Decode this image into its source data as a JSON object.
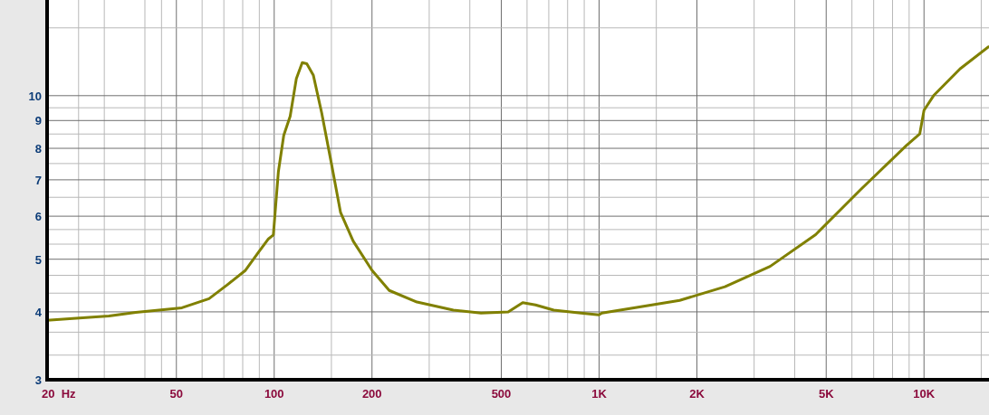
{
  "chart_data": {
    "type": "line",
    "log": "xy",
    "grid": true,
    "line_style": "solid",
    "xlim": [
      20,
      15850
    ],
    "ylim": [
      3,
      15
    ],
    "xticks": [
      {
        "value": 20,
        "label": "20  Hz"
      },
      {
        "value": 25,
        "label": null
      },
      {
        "value": 30,
        "label": null
      },
      {
        "value": 40,
        "label": null
      },
      {
        "value": 45,
        "label": null
      },
      50,
      {
        "value": 60,
        "label": null
      },
      {
        "value": 70,
        "label": null
      },
      {
        "value": 80,
        "label": null
      },
      {
        "value": 90,
        "label": null
      },
      100,
      {
        "value": 150,
        "label": null
      },
      200,
      {
        "value": 300,
        "label": null
      },
      {
        "value": 400,
        "label": null
      },
      500,
      {
        "value": 600,
        "label": null
      },
      {
        "value": 700,
        "label": null
      },
      {
        "value": 800,
        "label": null
      },
      {
        "value": 900,
        "label": null
      },
      {
        "value": 1000,
        "label": "1K"
      },
      {
        "value": 1500,
        "label": null
      },
      {
        "value": 2000,
        "label": "2K"
      },
      {
        "value": 3000,
        "label": null
      },
      {
        "value": 4000,
        "label": null
      },
      {
        "value": 5000,
        "label": "5K"
      },
      {
        "value": 6000,
        "label": null
      },
      {
        "value": 7000,
        "label": null
      },
      {
        "value": 8000,
        "label": null
      },
      {
        "value": 9000,
        "label": null
      },
      {
        "value": 10000,
        "label": "10K"
      },
      {
        "value": 15000,
        "label": null
      }
    ],
    "yticks": [
      3,
      {
        "value": 3.33,
        "label": null
      },
      {
        "value": 3.67,
        "label": null
      },
      4,
      {
        "value": 4.33,
        "label": null
      },
      {
        "value": 4.67,
        "label": null
      },
      5,
      {
        "value": 5.33,
        "label": null
      },
      {
        "value": 5.67,
        "label": null
      },
      6,
      {
        "value": 6.5,
        "label": null
      },
      7,
      {
        "value": 7.5,
        "label": null
      },
      8,
      {
        "value": 8.5,
        "label": null
      },
      9,
      {
        "value": 9.5,
        "label": null
      },
      10,
      {
        "value": 13.33,
        "label": null
      }
    ],
    "series": [
      {
        "color": "#808000",
        "x": [
          20,
          24,
          31,
          37.5,
          52,
          63,
          71.5,
          81.6,
          89.3,
          96,
          99.4,
          103,
          107,
          112,
          117,
          122,
          126,
          132,
          140,
          150,
          160,
          175,
          200,
          226,
          275,
          356,
          433,
          525,
          582,
          637,
          725,
          878,
          999,
          1020,
          1280,
          1770,
          2440,
          3360,
          4640,
          6390,
          8830,
          9700,
          10000,
          10700,
          12900,
          15800
        ],
        "values": [
          3.86,
          3.89,
          3.93,
          3.99,
          4.07,
          4.23,
          4.48,
          4.77,
          5.14,
          5.45,
          5.54,
          7.24,
          8.45,
          9.17,
          10.75,
          11.5,
          11.45,
          10.9,
          9.3,
          7.5,
          6.1,
          5.4,
          4.77,
          4.38,
          4.17,
          4.03,
          3.98,
          4.0,
          4.16,
          4.12,
          4.03,
          3.98,
          3.95,
          3.98,
          4.07,
          4.2,
          4.45,
          4.85,
          5.55,
          6.72,
          8.1,
          8.5,
          9.4,
          10.0,
          11.2,
          12.3
        ]
      }
    ]
  }
}
